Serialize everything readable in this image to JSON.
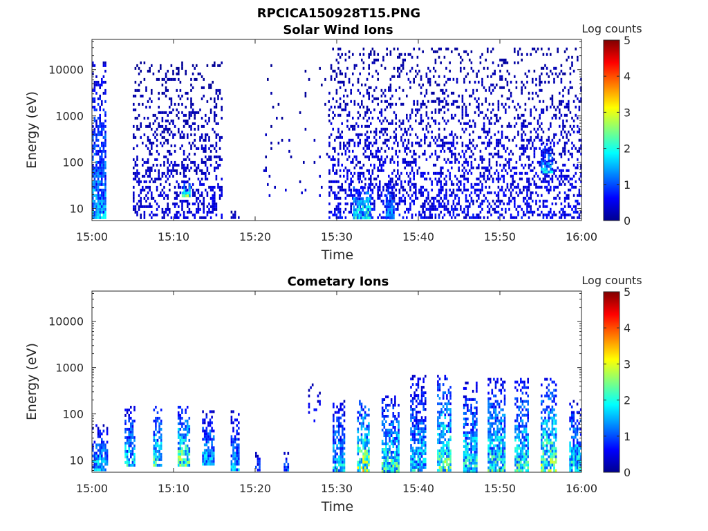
{
  "figure": {
    "title": "RPCICA150928T15.PNG"
  },
  "chart_data": [
    {
      "type": "heatmap",
      "title": "Solar Wind Ions",
      "xlabel": "Time",
      "ylabel": "Energy (eV)",
      "xticks": [
        "15:00",
        "15:10",
        "15:20",
        "15:30",
        "15:40",
        "15:50",
        "16:00"
      ],
      "xlim_minutes": [
        0,
        60
      ],
      "yscale": "log",
      "ylim": [
        5.5,
        45000
      ],
      "yticks": [
        10,
        100,
        1000,
        10000
      ],
      "ytick_labels": [
        "10",
        "100",
        "1000",
        "10000"
      ],
      "colorbar": {
        "label": "Log counts",
        "range": [
          0,
          5
        ],
        "ticks": [
          "0",
          "1",
          "2",
          "3",
          "4",
          "5"
        ],
        "colormap": "jet"
      },
      "features": [
        {
          "start_min": 0,
          "end_min": 1.6,
          "emin": 6,
          "emax": 15000,
          "level": 1.2,
          "density": "high"
        },
        {
          "start_min": 5,
          "end_min": 16,
          "emin": 6,
          "emax": 15000,
          "level": 0.4,
          "density": "medium"
        },
        {
          "start_min": 11,
          "end_min": 12,
          "emin": 20,
          "emax": 40,
          "level": 1.8,
          "density": "high"
        },
        {
          "start_min": 17,
          "end_min": 18,
          "emin": 6,
          "emax": 9,
          "level": 0.5,
          "density": "high"
        },
        {
          "start_min": 21,
          "end_min": 29,
          "emin": 20,
          "emax": 15000,
          "level": 0.3,
          "density": "very-low"
        },
        {
          "start_min": 29,
          "end_min": 60,
          "emin": 6,
          "emax": 30000,
          "level": 0.5,
          "density": "medium"
        },
        {
          "start_min": 32,
          "end_min": 34,
          "emin": 6,
          "emax": 40,
          "level": 1.8,
          "density": "high"
        },
        {
          "start_min": 36,
          "end_min": 37,
          "emin": 6,
          "emax": 40,
          "level": 1.2,
          "density": "high"
        },
        {
          "start_min": 55,
          "end_min": 56.5,
          "emin": 60,
          "emax": 300,
          "level": 1.3,
          "density": "high"
        }
      ]
    },
    {
      "type": "heatmap",
      "title": "Cometary Ions",
      "xlabel": "Time",
      "ylabel": "Energy (eV)",
      "xticks": [
        "15:00",
        "15:10",
        "15:20",
        "15:30",
        "15:40",
        "15:50",
        "16:00"
      ],
      "xlim_minutes": [
        0,
        60
      ],
      "yscale": "log",
      "ylim": [
        5.5,
        45000
      ],
      "yticks": [
        10,
        100,
        1000,
        10000
      ],
      "ytick_labels": [
        "10",
        "100",
        "1000",
        "10000"
      ],
      "colorbar": {
        "label": "Log counts",
        "range": [
          0,
          5
        ],
        "ticks": [
          "0",
          "1",
          "2",
          "3",
          "4",
          "5"
        ],
        "colormap": "jet"
      },
      "features": [
        {
          "start_min": 0,
          "end_min": 1.8,
          "emin": 6,
          "emax": 60,
          "level": 1.4,
          "density": "high"
        },
        {
          "start_min": 4,
          "end_min": 5.2,
          "emin": 8,
          "emax": 150,
          "level": 1.5,
          "density": "high"
        },
        {
          "start_min": 7.5,
          "end_min": 8.5,
          "emin": 8,
          "emax": 150,
          "level": 1.7,
          "density": "high"
        },
        {
          "start_min": 10.5,
          "end_min": 12,
          "emin": 8,
          "emax": 150,
          "level": 2.0,
          "density": "high"
        },
        {
          "start_min": 13.5,
          "end_min": 15,
          "emin": 8,
          "emax": 120,
          "level": 1.4,
          "density": "high"
        },
        {
          "start_min": 17,
          "end_min": 18,
          "emin": 6,
          "emax": 120,
          "level": 1.2,
          "density": "high"
        },
        {
          "start_min": 20,
          "end_min": 20.5,
          "emin": 6,
          "emax": 15,
          "level": 1.0,
          "density": "high"
        },
        {
          "start_min": 23.5,
          "end_min": 24,
          "emin": 6,
          "emax": 15,
          "level": 1.1,
          "density": "high"
        },
        {
          "start_min": 26.5,
          "end_min": 28,
          "emin": 60,
          "emax": 600,
          "level": 0.6,
          "density": "low"
        },
        {
          "start_min": 29.5,
          "end_min": 31,
          "emin": 6,
          "emax": 200,
          "level": 1.4,
          "density": "high"
        },
        {
          "start_min": 32.5,
          "end_min": 34,
          "emin": 6,
          "emax": 200,
          "level": 2.3,
          "density": "high"
        },
        {
          "start_min": 35.5,
          "end_min": 37.5,
          "emin": 6,
          "emax": 250,
          "level": 1.8,
          "density": "high"
        },
        {
          "start_min": 39,
          "end_min": 40.8,
          "emin": 6,
          "emax": 700,
          "level": 1.4,
          "density": "high"
        },
        {
          "start_min": 42.3,
          "end_min": 44,
          "emin": 6,
          "emax": 700,
          "level": 1.9,
          "density": "high"
        },
        {
          "start_min": 45.5,
          "end_min": 47.2,
          "emin": 6,
          "emax": 500,
          "level": 1.6,
          "density": "high"
        },
        {
          "start_min": 48.5,
          "end_min": 50.5,
          "emin": 6,
          "emax": 600,
          "level": 1.7,
          "density": "high"
        },
        {
          "start_min": 51.8,
          "end_min": 53.5,
          "emin": 6,
          "emax": 600,
          "level": 1.7,
          "density": "high"
        },
        {
          "start_min": 55,
          "end_min": 56.8,
          "emin": 6,
          "emax": 600,
          "level": 2.0,
          "density": "high"
        },
        {
          "start_min": 58.5,
          "end_min": 60,
          "emin": 6,
          "emax": 200,
          "level": 1.6,
          "density": "high"
        }
      ]
    }
  ]
}
